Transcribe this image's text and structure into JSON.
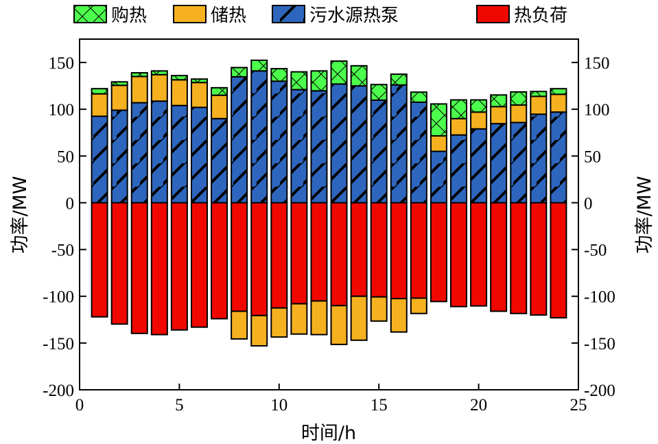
{
  "chart_data": {
    "type": "bar",
    "stacked": true,
    "xlabel": "时间/h",
    "ylabel": "功率/MW",
    "ylabel_right": "功率/MW",
    "xlim": [
      0,
      25
    ],
    "ylim": [
      -200,
      175
    ],
    "xticks": [
      0,
      5,
      10,
      15,
      20,
      25
    ],
    "yticks": [
      -200,
      -150,
      -100,
      -50,
      0,
      50,
      100,
      150
    ],
    "grid": false,
    "legend_position": "top",
    "x": [
      1,
      2,
      3,
      4,
      5,
      6,
      7,
      8,
      9,
      10,
      11,
      12,
      13,
      14,
      15,
      16,
      17,
      18,
      19,
      20,
      21,
      22,
      23,
      24
    ],
    "series": [
      {
        "name": "购热",
        "color": "#4CFF4C",
        "pattern": "crosshatch",
        "values": [
          5.5,
          3.7,
          4.0,
          4.0,
          4.5,
          3.7,
          8.0,
          9.9,
          11.4,
          13.4,
          19.0,
          21.3,
          24.5,
          21.5,
          16.7,
          11.5,
          10.8,
          34.2,
          20.0,
          13.0,
          12.5,
          14.0,
          5.2,
          6.0
        ]
      },
      {
        "name": "储热",
        "color": "#F5B120",
        "pattern": "solid",
        "values": [
          24.0,
          26.6,
          28.0,
          28.3,
          27.5,
          26.6,
          25.0,
          -29.6,
          -32.4,
          -31.1,
          -32.4,
          -36.0,
          -41.5,
          -47.0,
          -25.8,
          -35.7,
          -16.4,
          16.5,
          17.5,
          18.0,
          18.2,
          18.7,
          19.1,
          19.0
        ]
      },
      {
        "name": "污水源热泵",
        "color": "#2E66BE",
        "pattern": "diagonal",
        "values": [
          92.5,
          99.0,
          107.0,
          108.7,
          104.0,
          102.0,
          90.0,
          134.7,
          141.0,
          130.0,
          121.0,
          119.7,
          127.0,
          125.0,
          109.7,
          126.0,
          107.5,
          55.0,
          72.5,
          79.0,
          84.6,
          85.8,
          94.7,
          97.0
        ]
      },
      {
        "name": "热负荷",
        "color": "#F00800",
        "pattern": "solid",
        "values": [
          -122.0,
          -129.7,
          -139.7,
          -141.0,
          -136.0,
          -133.0,
          -124.0,
          -116.0,
          -120.6,
          -112.5,
          -108.0,
          -105.0,
          -110.0,
          -100.0,
          -100.7,
          -102.5,
          -102.0,
          -105.6,
          -111.0,
          -110.3,
          -116.0,
          -118.4,
          -120.0,
          -123.0
        ]
      }
    ]
  }
}
